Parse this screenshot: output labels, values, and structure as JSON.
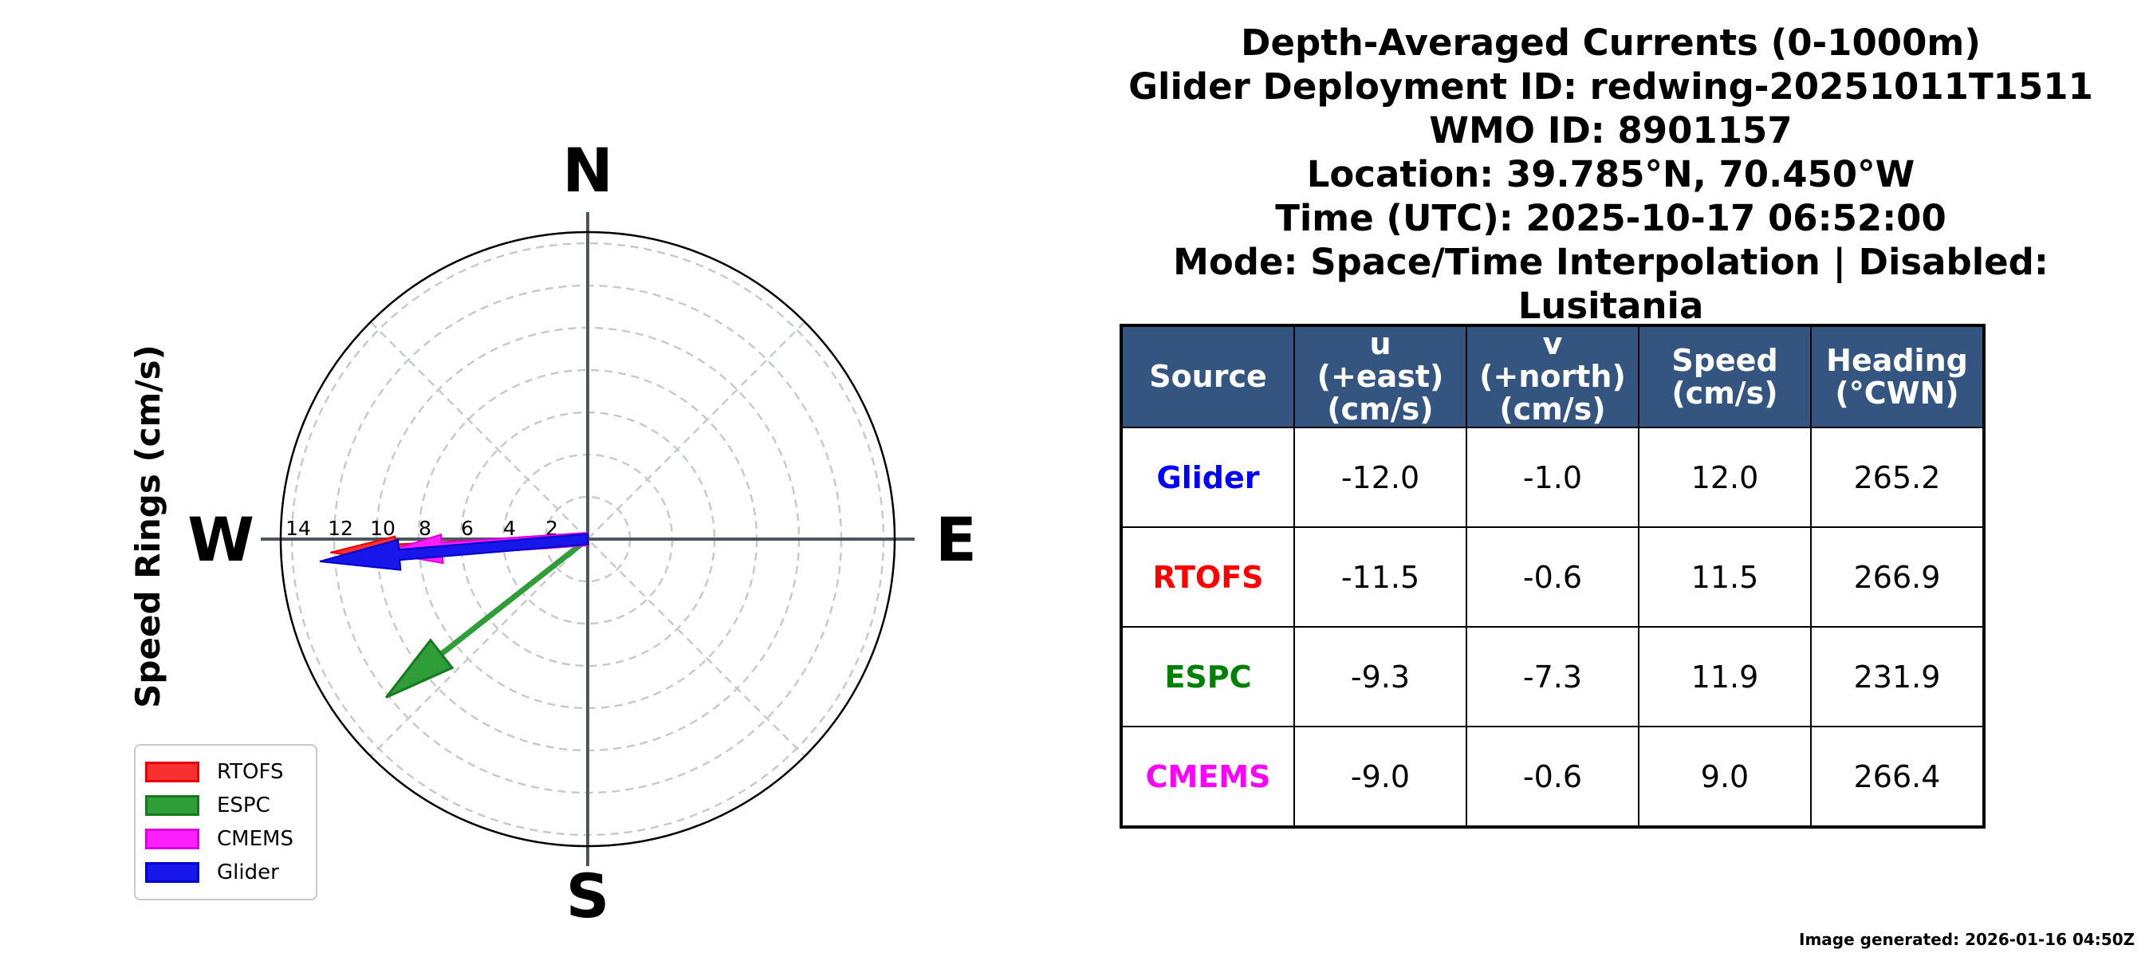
{
  "header": {
    "lines": [
      "Depth-Averaged Currents (0-1000m)",
      "Glider Deployment ID: redwing-20251011T1511",
      "WMO ID: 8901157",
      "Location: 39.785°N, 70.450°W",
      "Time (UTC): 2025-10-17 06:52:00",
      "Mode: Space/Time Interpolation | Disabled: Lusitania"
    ]
  },
  "compass": {
    "axis_label": "Speed Rings (cm/s)",
    "directions": {
      "north": "N",
      "east": "E",
      "south": "S",
      "west": "W"
    },
    "ring_labels": [
      "14",
      "12",
      "10",
      "8",
      "6",
      "4",
      "2"
    ],
    "colors": {
      "grid": "#c6cad2",
      "axis": "#4d565f",
      "outline": "#000000"
    }
  },
  "chart_data": {
    "type": "quiver_polar",
    "title": "Depth-Averaged Currents (0-1000m)",
    "units": "cm/s",
    "ring_values": [
      2,
      4,
      6,
      8,
      10,
      12,
      14
    ],
    "rmax": 14.5,
    "radial_axis_label": "Speed Rings (cm/s)",
    "legend_position": "lower left",
    "series": [
      {
        "name": "RTOFS",
        "u": -11.5,
        "v": -0.6,
        "speed": 11.5,
        "heading_cwn": 266.9,
        "style": "fat",
        "fill": "#f93030",
        "edge": "#e60000",
        "text_color": "#ff0000"
      },
      {
        "name": "ESPC",
        "u": -9.3,
        "v": -7.3,
        "speed": 11.9,
        "heading_cwn": 231.9,
        "style": "thin",
        "fill": "#2f9e38",
        "edge": "#177a20",
        "text_color": "#008000"
      },
      {
        "name": "CMEMS",
        "u": -9.0,
        "v": -0.6,
        "speed": 9.0,
        "heading_cwn": 266.4,
        "style": "fat",
        "fill": "#fd1ffd",
        "edge": "#d900d9",
        "text_color": "#ff00ff"
      },
      {
        "name": "Glider",
        "u": -12.0,
        "v": -1.0,
        "speed": 12.0,
        "heading_cwn": 265.2,
        "style": "fat",
        "fill": "#1717ec",
        "edge": "#0000c8",
        "text_color": "#0000ff"
      }
    ],
    "legend_order": [
      "RTOFS",
      "ESPC",
      "CMEMS",
      "Glider"
    ],
    "draw_order": [
      "RTOFS",
      "ESPC",
      "CMEMS",
      "Glider"
    ]
  },
  "table": {
    "headers": [
      "Source",
      "u\n(+east)\n(cm/s)",
      "v\n(+north)\n(cm/s)",
      "Speed\n(cm/s)",
      "Heading\n(°CWN)"
    ],
    "header_bg": "#345580",
    "rows": [
      {
        "source": "Glider",
        "u": "-12.0",
        "v": "-1.0",
        "speed": "12.0",
        "heading": "265.2"
      },
      {
        "source": "RTOFS",
        "u": "-11.5",
        "v": "-0.6",
        "speed": "11.5",
        "heading": "266.9"
      },
      {
        "source": "ESPC",
        "u": "-9.3",
        "v": "-7.3",
        "speed": "11.9",
        "heading": "231.9"
      },
      {
        "source": "CMEMS",
        "u": "-9.0",
        "v": "-0.6",
        "speed": "9.0",
        "heading": "266.4"
      }
    ]
  },
  "footer": {
    "generated_note": "Image generated: 2026-01-16 04:50Z"
  }
}
